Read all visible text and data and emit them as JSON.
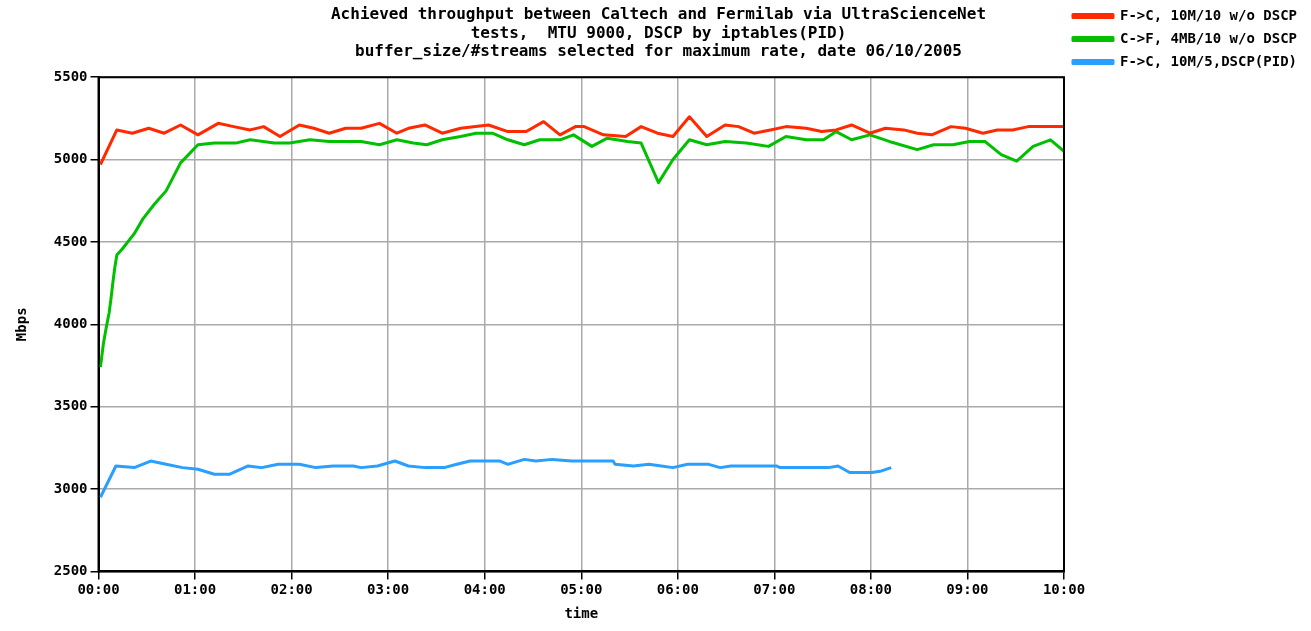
{
  "chart_data": {
    "type": "line",
    "title": "Achieved throughput between Caltech and Fermilab via UltraScienceNet",
    "subtitle": "tests,  MTU 9000, DSCP by iptables(PID)\nbuffer_size/#streams selected for maximum rate, date 06/10/2005",
    "xlabel": "time",
    "ylabel": "Mbps",
    "xlim": [
      0,
      10
    ],
    "xticks": [
      {
        "value": 0,
        "label": "00:00"
      },
      {
        "value": 1,
        "label": "01:00"
      },
      {
        "value": 2,
        "label": "02:00"
      },
      {
        "value": 3,
        "label": "03:00"
      },
      {
        "value": 4,
        "label": "04:00"
      },
      {
        "value": 5,
        "label": "05:00"
      },
      {
        "value": 6,
        "label": "06:00"
      },
      {
        "value": 7,
        "label": "07:00"
      },
      {
        "value": 8,
        "label": "08:00"
      },
      {
        "value": 9,
        "label": "09:00"
      },
      {
        "value": 10,
        "label": "10:00"
      }
    ],
    "ylim": [
      2500,
      5500
    ],
    "yticks": [
      2500,
      3000,
      3500,
      4000,
      4500,
      5000,
      5500
    ],
    "grid": true,
    "legend": "top right",
    "marker": "none",
    "line_style": "solid",
    "series": [
      {
        "name": "F->C, 10M/10 w/o DSCP",
        "color": "#ff2a00",
        "x": [
          0.02,
          0.19,
          0.35,
          0.52,
          0.68,
          0.85,
          1.03,
          1.24,
          1.4,
          1.57,
          1.71,
          1.88,
          2.08,
          2.23,
          2.39,
          2.56,
          2.72,
          2.91,
          3.09,
          3.21,
          3.38,
          3.56,
          3.75,
          4.04,
          4.24,
          4.43,
          4.61,
          4.78,
          4.94,
          5.03,
          5.23,
          5.46,
          5.62,
          5.79,
          5.95,
          6.12,
          6.3,
          6.49,
          6.63,
          6.79,
          6.96,
          7.12,
          7.33,
          7.49,
          7.64,
          7.8,
          7.99,
          8.15,
          8.34,
          8.48,
          8.63,
          8.83,
          8.98,
          9.16,
          9.31,
          9.47,
          9.63,
          10
        ],
        "values": [
          4970,
          5180,
          5160,
          5190,
          5160,
          5210,
          5150,
          5220,
          5200,
          5180,
          5200,
          5140,
          5210,
          5190,
          5160,
          5190,
          5190,
          5220,
          5160,
          5190,
          5210,
          5160,
          5190,
          5210,
          5170,
          5170,
          5230,
          5150,
          5200,
          5200,
          5150,
          5140,
          5200,
          5160,
          5140,
          5260,
          5140,
          5210,
          5200,
          5160,
          5180,
          5200,
          5190,
          5170,
          5180,
          5210,
          5160,
          5190,
          5180,
          5160,
          5150,
          5200,
          5190,
          5160,
          5180,
          5180,
          5200,
          5200
        ]
      },
      {
        "name": "C->F, 4MB/10 w/o DSCP",
        "color": "#00c000",
        "x": [
          0.02,
          0.05,
          0.08,
          0.11,
          0.13,
          0.15,
          0.17,
          0.19,
          0.25,
          0.37,
          0.46,
          0.58,
          0.7,
          0.85,
          1.03,
          1.2,
          1.42,
          1.57,
          1.82,
          1.98,
          2.19,
          2.39,
          2.72,
          2.91,
          3.09,
          3.26,
          3.4,
          3.56,
          3.75,
          3.91,
          4.08,
          4.24,
          4.41,
          4.57,
          4.78,
          4.92,
          5.11,
          5.27,
          5.48,
          5.62,
          5.8,
          5.95,
          6.12,
          6.3,
          6.49,
          6.71,
          6.94,
          7.12,
          7.33,
          7.51,
          7.64,
          7.8,
          7.99,
          8.19,
          8.48,
          8.65,
          8.85,
          9.02,
          9.18,
          9.35,
          9.51,
          9.68,
          9.86,
          10
        ],
        "values": [
          3740,
          3880,
          3980,
          4070,
          4160,
          4260,
          4350,
          4420,
          4460,
          4550,
          4640,
          4730,
          4810,
          4980,
          5090,
          5100,
          5100,
          5120,
          5100,
          5100,
          5120,
          5110,
          5110,
          5090,
          5120,
          5100,
          5090,
          5120,
          5140,
          5160,
          5160,
          5120,
          5090,
          5120,
          5120,
          5150,
          5080,
          5130,
          5110,
          5100,
          4860,
          5000,
          5120,
          5090,
          5110,
          5100,
          5080,
          5140,
          5120,
          5120,
          5170,
          5120,
          5150,
          5110,
          5060,
          5090,
          5090,
          5110,
          5110,
          5030,
          4990,
          5080,
          5120,
          5050
        ]
      },
      {
        "name": "F->C, 10M/5,DSCP(PID)",
        "color": "#2a9fff",
        "x": [
          0.02,
          0.18,
          0.37,
          0.54,
          0.7,
          0.87,
          1.03,
          1.2,
          1.36,
          1.55,
          1.69,
          1.86,
          2.08,
          2.25,
          2.43,
          2.64,
          2.72,
          2.89,
          3.07,
          3.21,
          3.38,
          3.58,
          3.71,
          3.85,
          4.16,
          4.24,
          4.41,
          4.53,
          4.7,
          4.9,
          5.33,
          5.35,
          5.54,
          5.7,
          5.83,
          5.95,
          6.1,
          6.32,
          6.44,
          6.55,
          7.02,
          7.06,
          7.56,
          7.66,
          7.78,
          8.01,
          8.11,
          8.21
        ],
        "values": [
          2950,
          3140,
          3130,
          3170,
          3150,
          3130,
          3120,
          3090,
          3090,
          3140,
          3130,
          3150,
          3150,
          3130,
          3140,
          3140,
          3130,
          3140,
          3170,
          3140,
          3130,
          3130,
          3150,
          3170,
          3170,
          3150,
          3180,
          3170,
          3180,
          3170,
          3170,
          3150,
          3140,
          3150,
          3140,
          3130,
          3150,
          3150,
          3130,
          3140,
          3140,
          3130,
          3130,
          3140,
          3100,
          3100,
          3110,
          3130
        ]
      }
    ]
  }
}
